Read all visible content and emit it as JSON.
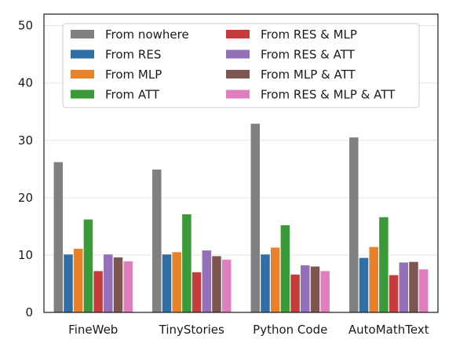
{
  "chart_data": {
    "type": "bar",
    "categories": [
      "FineWeb",
      "TinyStories",
      "Python Code",
      "AutoMathText"
    ],
    "series": [
      {
        "name": "From nowhere",
        "color": "#808080",
        "values": [
          26.2,
          24.9,
          32.9,
          30.5
        ]
      },
      {
        "name": "From RES",
        "color": "#2f6fa6",
        "values": [
          10.1,
          10.1,
          10.1,
          9.5
        ]
      },
      {
        "name": "From MLP",
        "color": "#e8822a",
        "values": [
          11.1,
          10.5,
          11.3,
          11.4
        ]
      },
      {
        "name": "From ATT",
        "color": "#3a9a3a",
        "values": [
          16.2,
          17.1,
          15.2,
          16.6
        ]
      },
      {
        "name": "From RES & MLP",
        "color": "#c63b3b",
        "values": [
          7.2,
          7.0,
          6.6,
          6.5
        ]
      },
      {
        "name": "From RES & ATT",
        "color": "#9470b8",
        "values": [
          10.1,
          10.8,
          8.2,
          8.7
        ]
      },
      {
        "name": "From MLP & ATT",
        "color": "#7d5651",
        "values": [
          9.6,
          9.8,
          8.0,
          8.8
        ]
      },
      {
        "name": "From RES & MLP & ATT",
        "color": "#e07fc0",
        "values": [
          8.9,
          9.2,
          7.2,
          7.5
        ]
      }
    ],
    "title": "",
    "xlabel": "",
    "ylabel": "",
    "ylim": [
      0,
      52
    ],
    "yticks": [
      "0",
      "10",
      "20",
      "30",
      "40",
      "50"
    ],
    "grid": true,
    "legend_position": "top"
  }
}
